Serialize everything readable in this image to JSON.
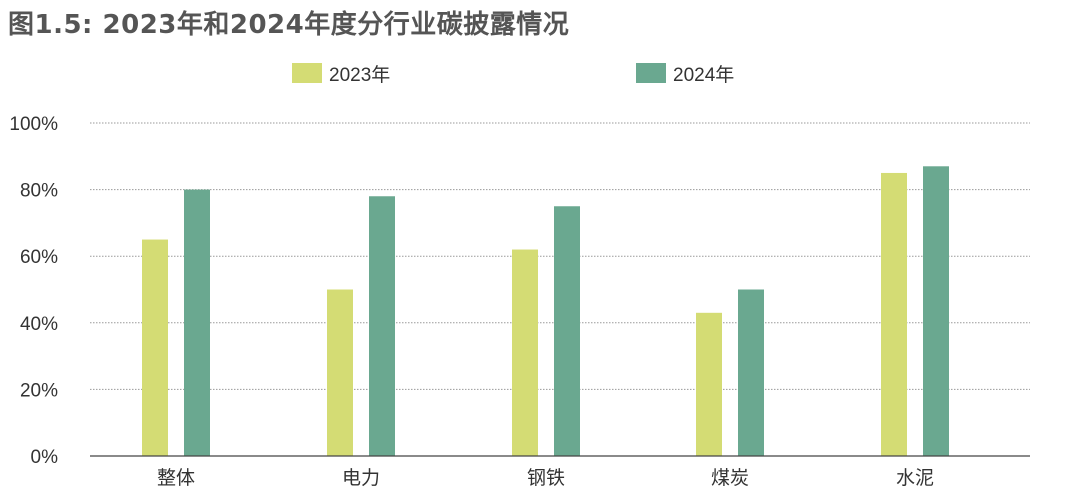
{
  "chart_data": {
    "type": "bar",
    "title": "图1.5: 2023年和2024年度分行业碳披露情况",
    "categories": [
      "整体",
      "电力",
      "钢铁",
      "煤炭",
      "水泥"
    ],
    "series": [
      {
        "name": "2023年",
        "color": "#d4dc74",
        "values": [
          65,
          50,
          62,
          43,
          85
        ]
      },
      {
        "name": "2024年",
        "color": "#6aa890",
        "values": [
          80,
          78,
          75,
          50,
          87
        ]
      }
    ],
    "yticks": [
      "0%",
      "20%",
      "40%",
      "60%",
      "80%",
      "100%"
    ],
    "ylim": [
      0,
      100
    ],
    "grid": true,
    "legend": "top-center"
  }
}
